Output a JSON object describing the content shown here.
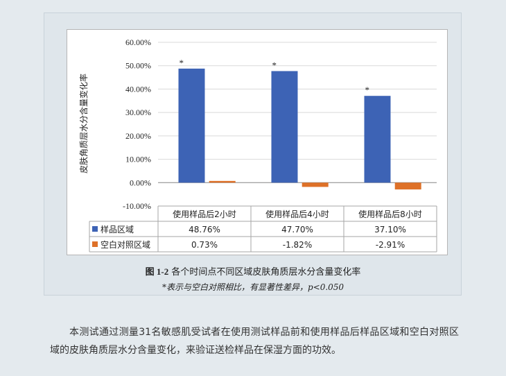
{
  "chart_data": {
    "type": "bar",
    "ylabel": "皮肤角质层水分含量变化率",
    "ylim": [
      -10,
      60
    ],
    "yticks": [
      "60.00%",
      "50.00%",
      "40.00%",
      "30.00%",
      "20.00%",
      "10.00%",
      "0.00%",
      "-10.00%"
    ],
    "categories": [
      "使用样品后2小时",
      "使用样品后4小时",
      "使用样品后8小时"
    ],
    "series": [
      {
        "name": "样品区域",
        "values": [
          48.76,
          47.7,
          37.1
        ],
        "labels": [
          "48.76%",
          "47.70%",
          "37.10%"
        ],
        "color": "#3d63b5"
      },
      {
        "name": "空白对照区域",
        "values": [
          0.73,
          -1.82,
          -2.91
        ],
        "labels": [
          "0.73%",
          "-1.82%",
          "-2.91%"
        ],
        "color": "#de7128"
      }
    ],
    "significance_marks": [
      "*",
      "*",
      "*"
    ],
    "grid": true,
    "legend": "data-table"
  },
  "caption": {
    "figure_number": "图 1-2",
    "title": "各个时间点不同区域皮肤角质层水分含量变化率",
    "note": "*表示与空白对照相比，有显著性差异，p<0.050"
  },
  "description": "本测试通过测量31名敏感肌受试者在使用测试样品前和使用样品后样品区域和空白对照区域的皮肤角质层水分含量变化，来验证送检样品在保湿方面的功效。",
  "colors": {
    "background": "#e4eaee",
    "plot_background": "#ffffff"
  }
}
